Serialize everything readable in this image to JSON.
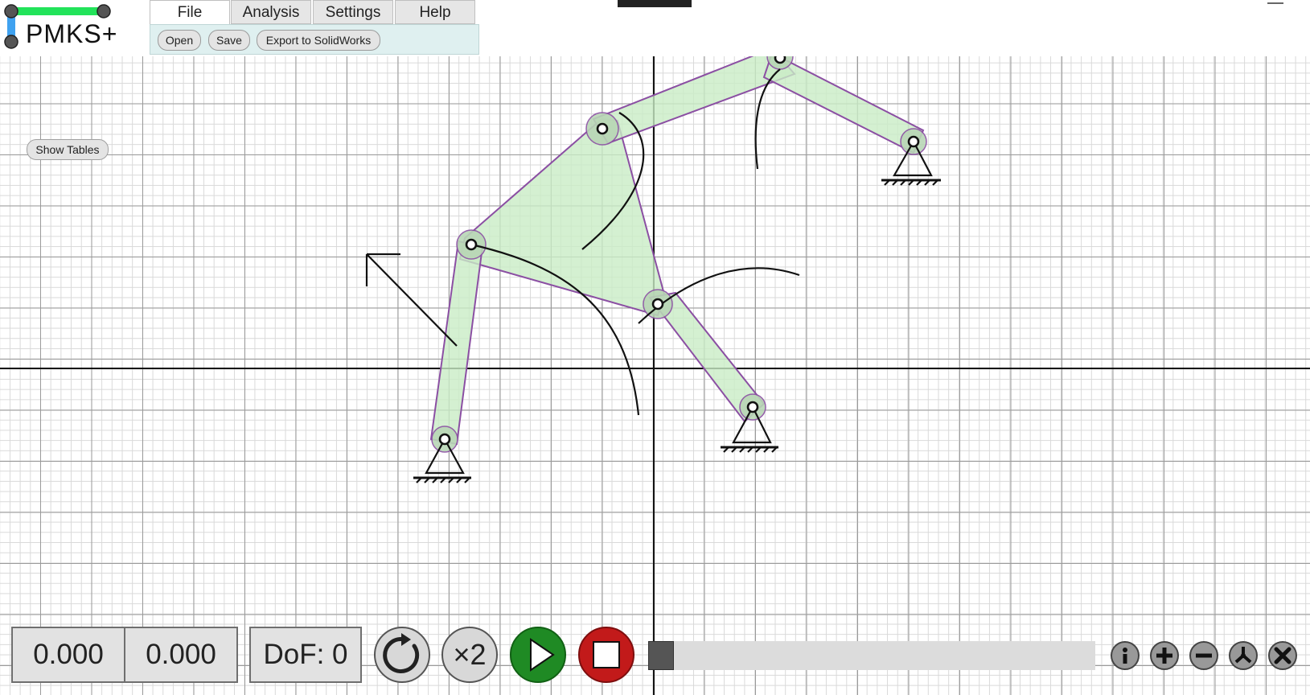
{
  "app": {
    "logo_text": "PMKS+"
  },
  "menu": {
    "tabs": [
      "File",
      "Analysis",
      "Settings",
      "Help"
    ],
    "active_tab": "File",
    "file_buttons": [
      "Open",
      "Save",
      "Export to SolidWorks"
    ]
  },
  "canvas": {
    "show_tables_label": "Show Tables"
  },
  "controls": {
    "x_readout": "0.000",
    "y_readout": "0.000",
    "dof_label": "DoF: 0",
    "speed_label": "×2",
    "progress": 0.0
  },
  "colors": {
    "link_fill": "#c9ecc6",
    "link_stroke": "#8b4fa3",
    "play_green": "#1f8a24",
    "stop_red": "#c21a1a",
    "logo_green": "#22e35a",
    "logo_blue": "#3fa2f0",
    "toolbar_bg": "#dff0f0"
  },
  "icons": [
    "rotate-icon",
    "play-icon",
    "stop-icon",
    "info-icon",
    "zoom-in-icon",
    "zoom-out-icon",
    "center-icon",
    "close-icon"
  ]
}
